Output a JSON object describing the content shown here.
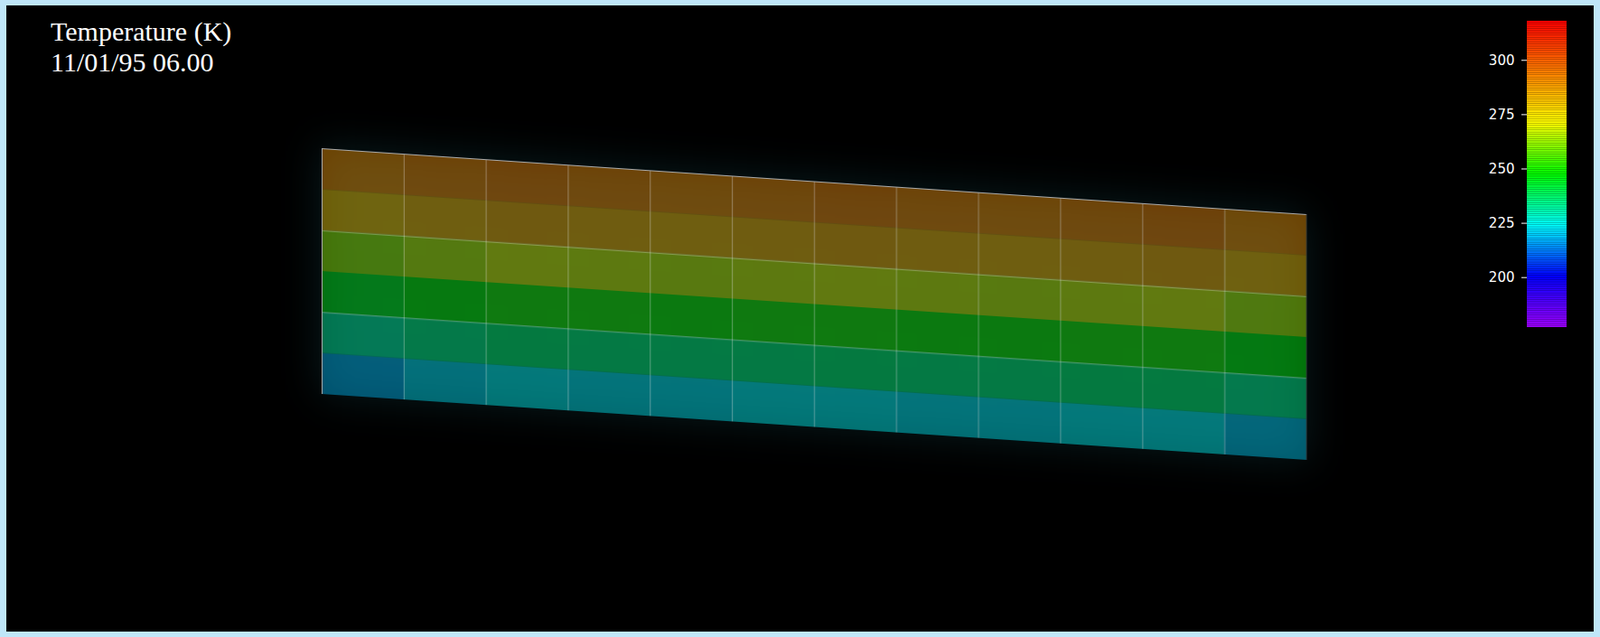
{
  "chart_data": {
    "type": "volume_map",
    "title": "Temperature (K)",
    "subtitle": "11/01/95 06.00",
    "lon_edges": [
      0,
      30,
      60,
      90,
      120,
      150,
      180,
      210,
      240,
      270,
      300,
      330,
      360
    ],
    "lat_edges": [
      -90,
      -75,
      -60,
      -45,
      -30,
      -15,
      0
    ],
    "cells": [
      [
        218,
        222,
        224,
        223,
        223,
        224,
        224,
        223,
        223,
        224,
        224,
        220
      ],
      [
        232,
        235,
        237,
        236,
        236,
        236,
        237,
        236,
        236,
        237,
        237,
        234
      ],
      [
        245,
        248,
        250,
        250,
        249,
        250,
        250,
        249,
        249,
        250,
        250,
        247
      ],
      [
        262,
        265,
        268,
        267,
        266,
        267,
        268,
        267,
        266,
        267,
        268,
        264
      ],
      [
        280,
        283,
        285,
        284,
        283,
        284,
        285,
        284,
        283,
        284,
        285,
        282
      ],
      [
        290,
        292,
        293,
        292,
        291,
        292,
        293,
        292,
        291,
        292,
        293,
        290
      ]
    ],
    "xlim": [
      0,
      360
    ],
    "ylim": [
      -90,
      0
    ],
    "xticks": [
      30,
      60,
      90,
      120,
      150,
      180,
      210,
      240,
      270,
      300,
      330
    ],
    "yticks": [
      -60,
      -30
    ],
    "grid": true,
    "tick_labels": false,
    "colorbar": {
      "range": [
        177,
        318
      ],
      "ticks": [
        200,
        225,
        250,
        275,
        300
      ],
      "colors": [
        "#a000ff",
        "#0000ff",
        "#00ffff",
        "#00ff00",
        "#ffff00",
        "#ff8000",
        "#ff0000"
      ]
    }
  }
}
